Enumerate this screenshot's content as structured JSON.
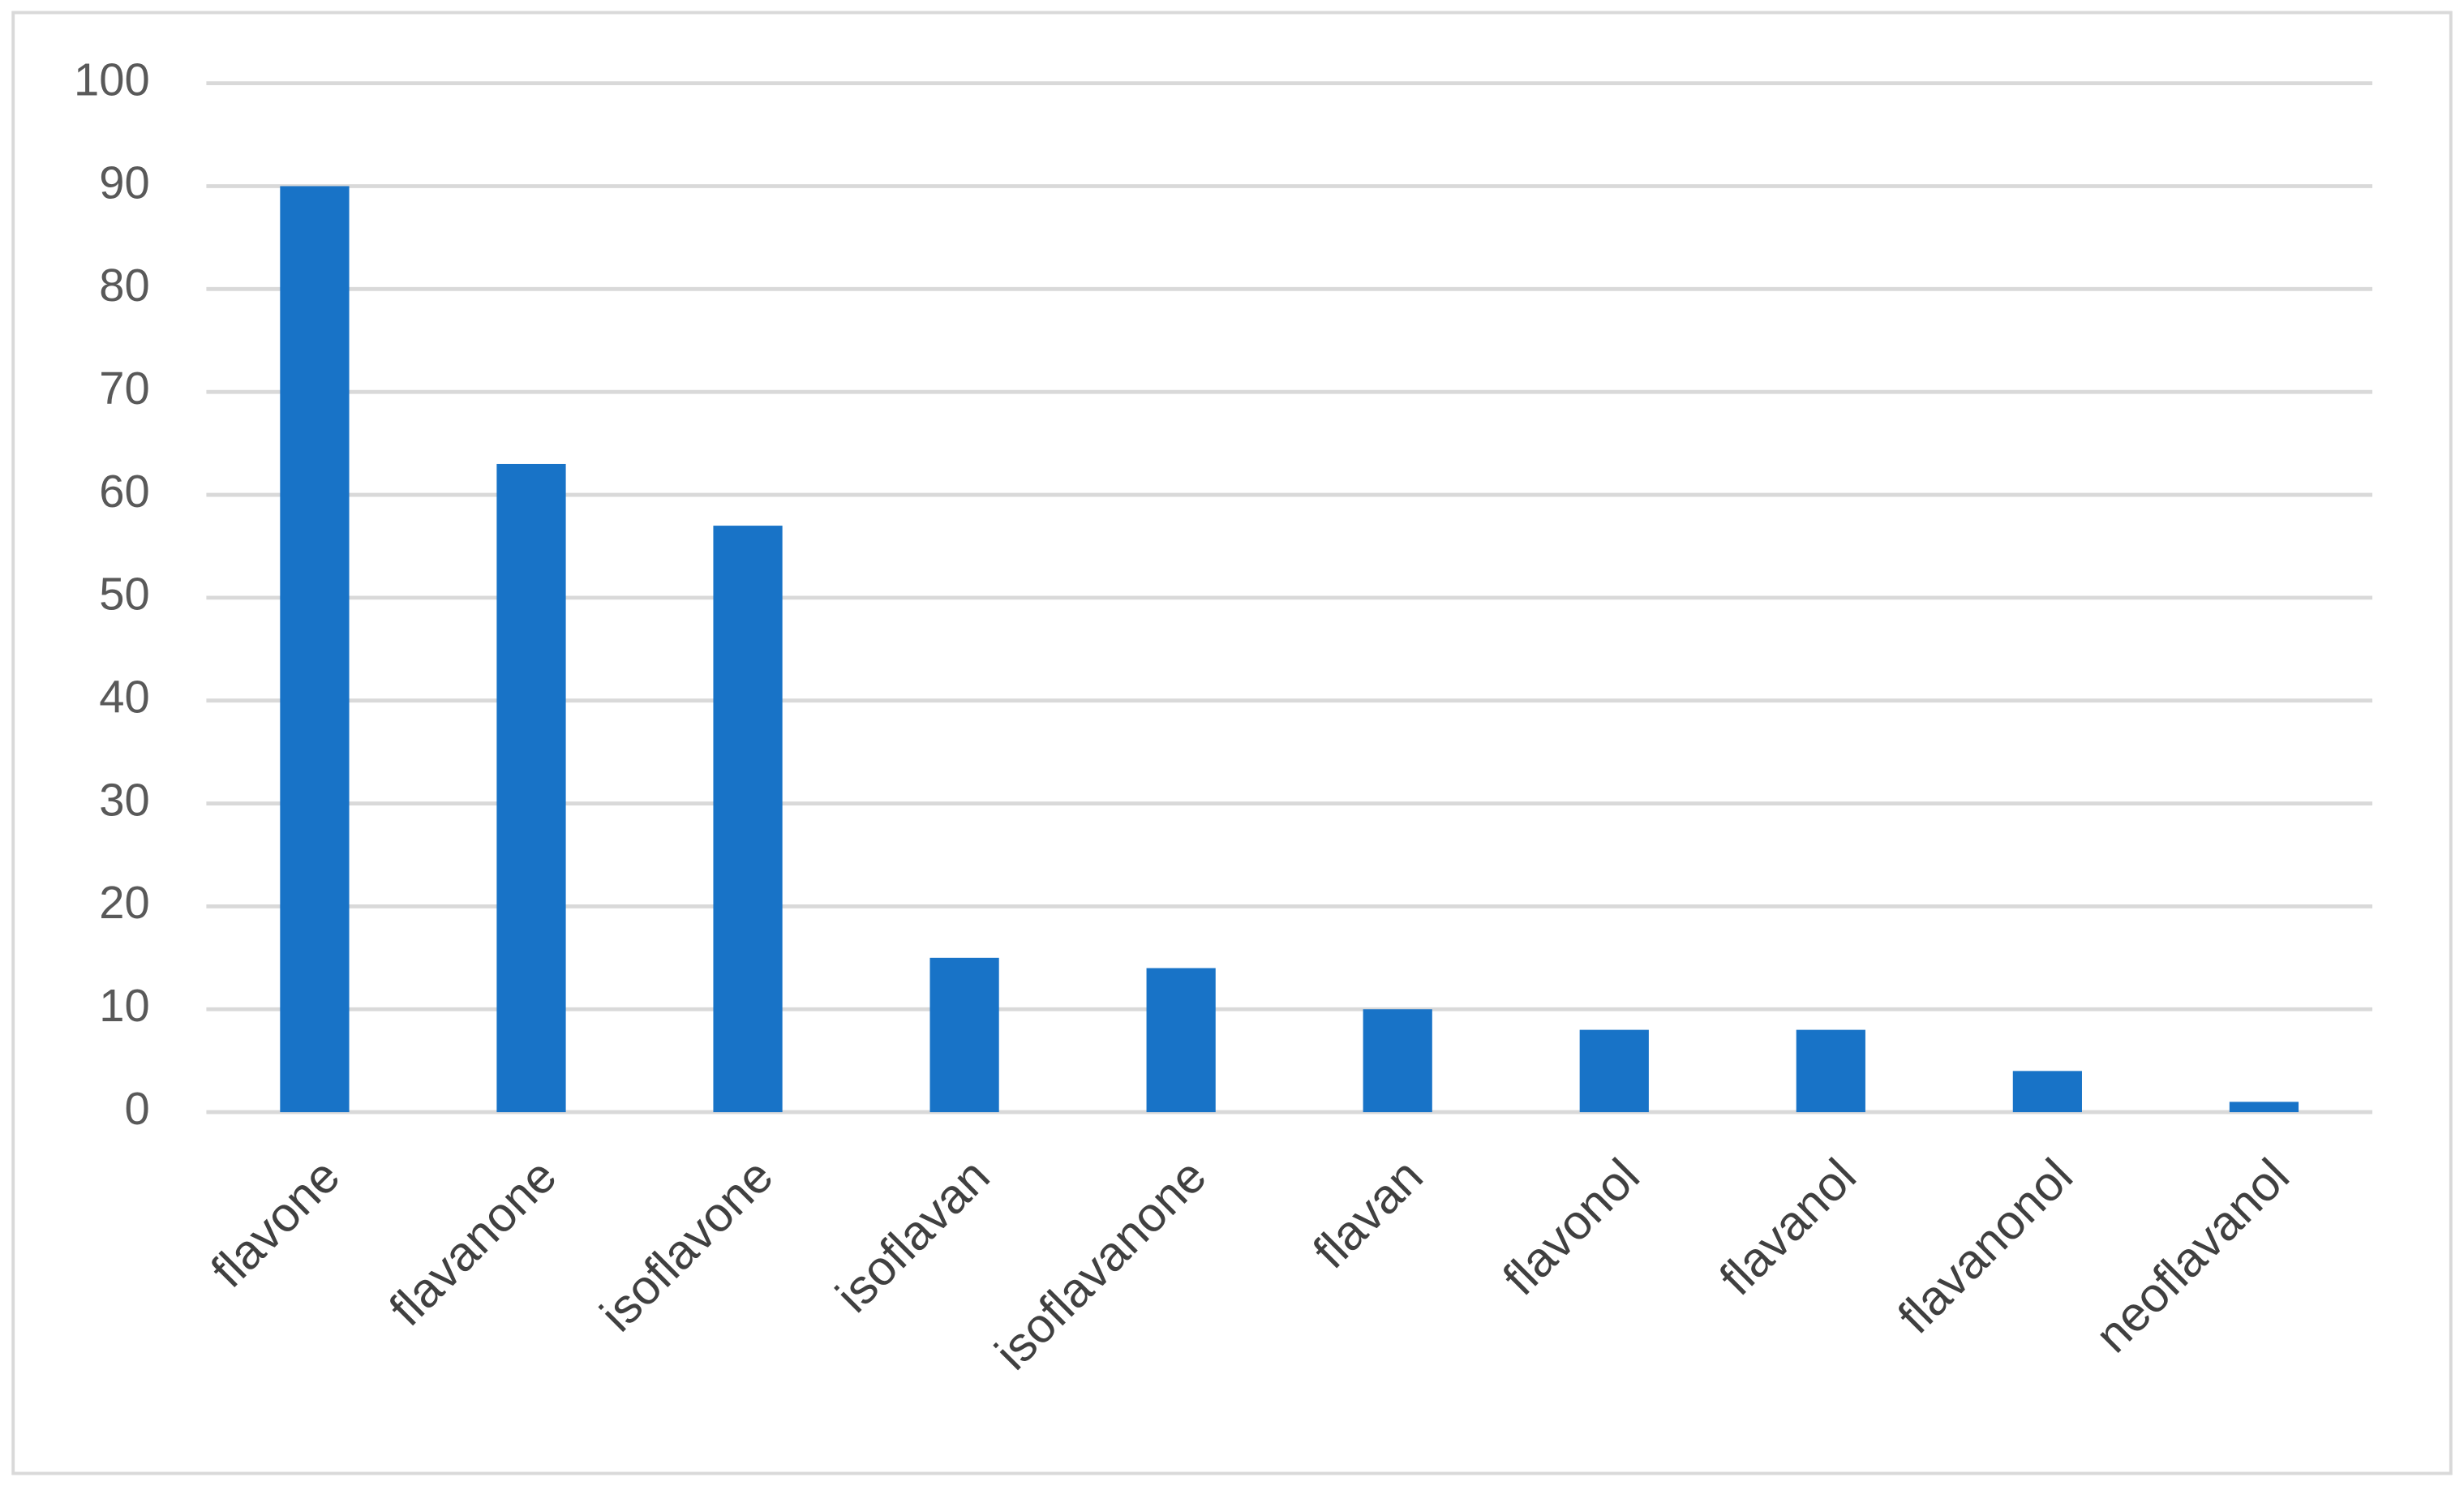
{
  "chart_data": {
    "type": "bar",
    "categories": [
      "flavone",
      "flavanone",
      "isoflavone",
      "isoflavan",
      "isoflavanone",
      "flavan",
      "flavonol",
      "flavanol",
      "flavanonol",
      "neoflavanol"
    ],
    "values": [
      90,
      63,
      57,
      15,
      14,
      10,
      8,
      8,
      4,
      1
    ],
    "color": "#1873c7",
    "ylim": [
      0,
      100
    ],
    "yticks": [
      0,
      10,
      20,
      30,
      40,
      50,
      60,
      70,
      80,
      90,
      100
    ],
    "grid": true
  }
}
